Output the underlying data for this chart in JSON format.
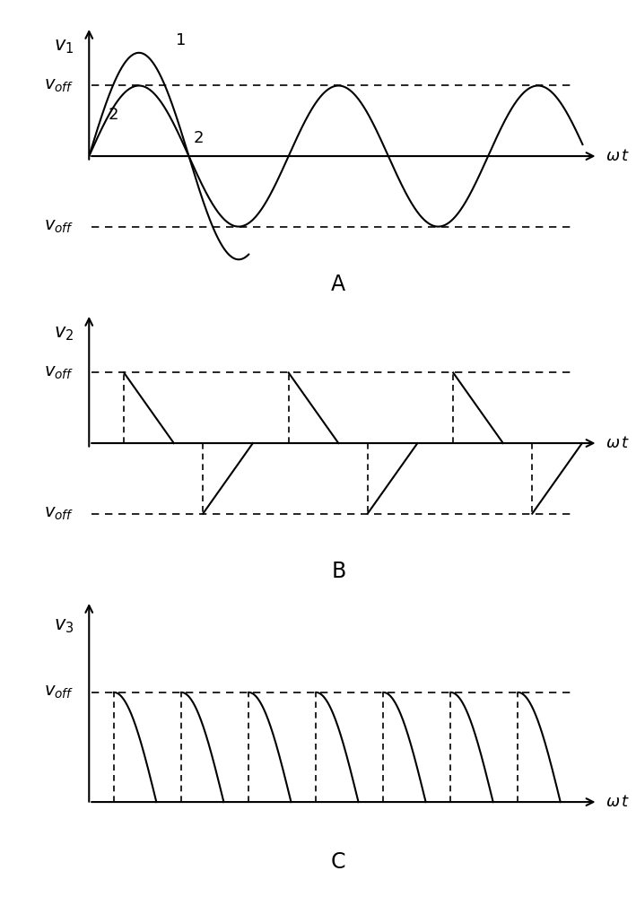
{
  "background_color": "#ffffff",
  "text_color": "#000000",
  "panel_A_label": "A",
  "panel_B_label": "B",
  "panel_C_label": "C",
  "ylabel_A": "$v_1$",
  "ylabel_B": "$v_2$",
  "ylabel_C": "$v_3$",
  "voff_label": "$v_{off}$",
  "xlabel": "$\\omega\\,t$",
  "voff": 0.6,
  "font_size_label": 15,
  "font_size_axis": 13,
  "font_size_panel": 17,
  "font_size_curve_label": 13
}
